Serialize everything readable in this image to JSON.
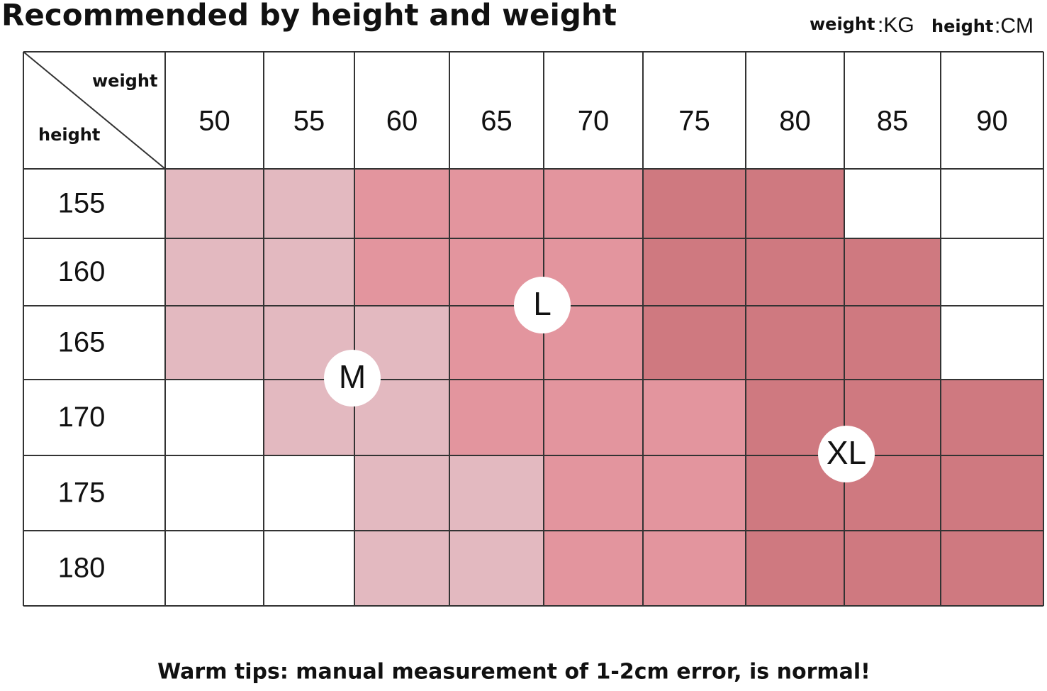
{
  "header": {
    "title": "Recommended by height and weight",
    "weight_unit": {
      "label": "weight",
      "unit": ":KG"
    },
    "height_unit": {
      "label": "height",
      "unit": ":CM"
    }
  },
  "table": {
    "corner": {
      "top": "weight",
      "bottom": "height"
    },
    "weights": [
      "50",
      "55",
      "60",
      "65",
      "70",
      "75",
      "80",
      "85",
      "90"
    ],
    "sizes": [
      {
        "label": "M",
        "color": "#e3b9c0"
      },
      {
        "label": "L",
        "color": "#e3959e"
      },
      {
        "label": "XL",
        "color": "#cf7980"
      }
    ],
    "rows": [
      {
        "height": "155",
        "cells": [
          "M",
          "M",
          "L",
          "L",
          "L",
          "XL",
          "XL",
          null,
          null
        ]
      },
      {
        "height": "160",
        "cells": [
          "M",
          "M",
          "L",
          "L",
          "L",
          "XL",
          "XL",
          "XL",
          null
        ]
      },
      {
        "height": "165",
        "cells": [
          "M",
          "M",
          "M",
          "L",
          "L",
          "XL",
          "XL",
          "XL",
          null
        ]
      },
      {
        "height": "170",
        "cells": [
          null,
          "M",
          "M",
          "L",
          "L",
          "L",
          "XL",
          "XL",
          "XL"
        ]
      },
      {
        "height": "175",
        "cells": [
          null,
          null,
          "M",
          "M",
          "L",
          "L",
          "XL",
          "XL",
          "XL"
        ]
      },
      {
        "height": "180",
        "cells": [
          null,
          null,
          "M",
          "M",
          "L",
          "L",
          "XL",
          "XL",
          "XL"
        ]
      }
    ]
  },
  "footer": {
    "text": "Warm tips: manual measurement of 1-2cm error, is normal!"
  }
}
